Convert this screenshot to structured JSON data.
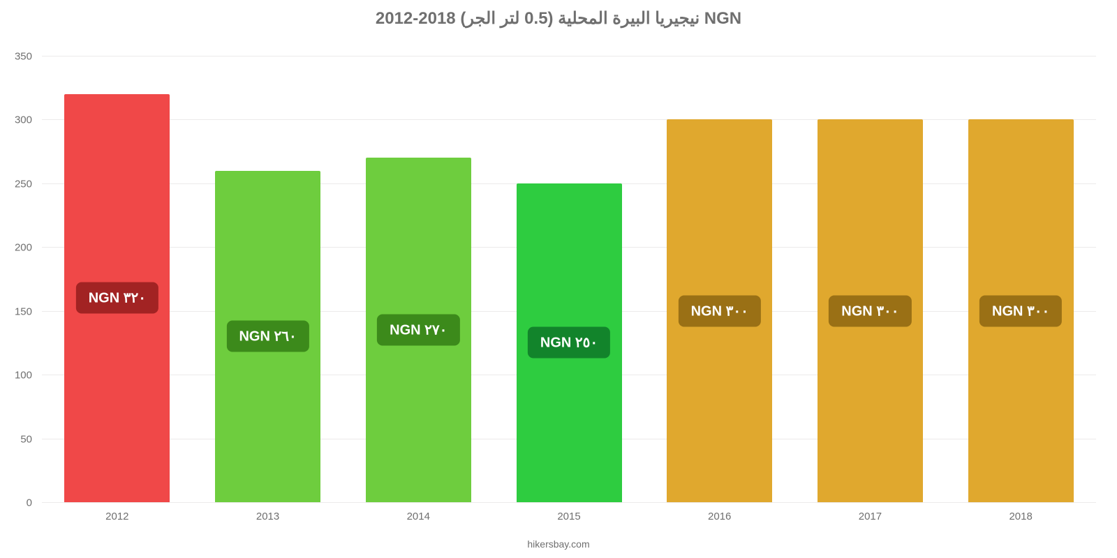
{
  "chart": {
    "type": "bar",
    "title": "نيجيريا البيرة المحلية (0.5 لتر الجر) 2018-2012 NGN",
    "title_fontsize": 24,
    "title_color": "#6f6f6f",
    "background_color": "#ffffff",
    "grid_color": "#eceaea",
    "axis_label_color": "#6f6f6f",
    "axis_font_size": 15,
    "ylim": [
      0,
      350
    ],
    "ytick_step": 50,
    "yticks": [
      0,
      50,
      100,
      150,
      200,
      250,
      300,
      350
    ],
    "categories": [
      "2012",
      "2013",
      "2014",
      "2015",
      "2016",
      "2017",
      "2018"
    ],
    "values": [
      320,
      260,
      270,
      250,
      300,
      300,
      300
    ],
    "bar_colors": [
      "#f04848",
      "#6ecd3e",
      "#6ecd3e",
      "#2ecc40",
      "#e0a82e",
      "#e0a82e",
      "#e0a82e"
    ],
    "label_bg_colors": [
      "#a22323",
      "#3c8a1b",
      "#3c8a1b",
      "#12842b",
      "#9a7015",
      "#9a7015",
      "#9a7015"
    ],
    "data_labels": [
      "٣٢٠ NGN",
      "٢٦٠ NGN",
      "٢٧٠ NGN",
      "٢٥٠ NGN",
      "٣٠٠ NGN",
      "٣٠٠ NGN",
      "٣٠٠ NGN"
    ],
    "data_label_fontsize": 20,
    "bar_width_ratio": 0.7,
    "source_text": "hikersbay.com"
  }
}
